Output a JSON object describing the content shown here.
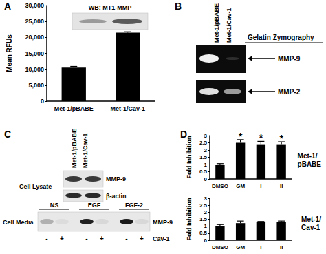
{
  "chart_data": [
    {
      "type": "bar",
      "panel_label": "A",
      "inset_title": "WB: MT1-MMP",
      "categories": [
        "Met-1/pBABE",
        "Met-1/Cav-1"
      ],
      "values": [
        10500,
        21500
      ],
      "errors": [
        400,
        250
      ],
      "color": "#000000",
      "y_label": "Mean RFUs",
      "ylim": [
        0,
        30000
      ],
      "yticks": [
        0,
        {
          "value": 5000,
          "label": "5,000"
        },
        {
          "value": 10000,
          "label": "10,000"
        },
        {
          "value": 15000,
          "label": "15,000"
        },
        {
          "value": 20000,
          "label": "20,000"
        },
        {
          "value": 25000,
          "label": "25,000"
        },
        {
          "value": 30000,
          "label": "30,000"
        }
      ],
      "grid": false
    },
    {
      "type": "bar",
      "panel_label": "D",
      "title": "Met-1/\npBABE",
      "categories": [
        "DMSO",
        "GM",
        "I",
        "II"
      ],
      "values": [
        1.0,
        2.5,
        2.4,
        2.4
      ],
      "errors": [
        0.06,
        0.22,
        0.2,
        0.17
      ],
      "significance": [
        null,
        "*",
        "*",
        "*"
      ],
      "color": "#000000",
      "y_label": "Fold Inhibition",
      "ylim": [
        0,
        3
      ],
      "yticks": [
        0,
        0.5,
        1,
        1.5,
        2,
        2.5,
        3
      ],
      "grid": false
    },
    {
      "type": "bar",
      "title": "Met-1/\nCav-1",
      "categories": [
        "DMSO",
        "GM",
        "I",
        "II"
      ],
      "values": [
        1.0,
        1.22,
        1.28,
        1.3
      ],
      "errors": [
        0.12,
        0.15,
        0.06,
        0.07
      ],
      "color": "#000000",
      "y_label": "Fold Inhibition",
      "ylim": [
        0,
        3
      ],
      "yticks": [
        0,
        0.5,
        1,
        1.5,
        2,
        2.5,
        3
      ],
      "grid": false
    }
  ],
  "blots": {
    "B": {
      "panel_label": "B",
      "lanes": [
        "Met-1/pBABE",
        "Met-1/Cav-1"
      ],
      "caption": "Gelatin Zymography",
      "bands": [
        "MMP-9",
        "MMP-2"
      ]
    },
    "C": {
      "panel_label": "C",
      "lanes": [
        "Met-1/pBABE",
        "Met-1/Cav-1"
      ],
      "lysate_label": "Cell Lysate",
      "lysate_bands": [
        "MMP-9",
        "β-actin"
      ],
      "media_label": "Cell Media",
      "media_band": "MMP-9",
      "treatments": [
        "NS",
        "EGF",
        "FGF-2"
      ],
      "row_label": "Cav-1",
      "signs": [
        "-",
        "+",
        "-",
        "+",
        "-",
        "+"
      ]
    }
  }
}
